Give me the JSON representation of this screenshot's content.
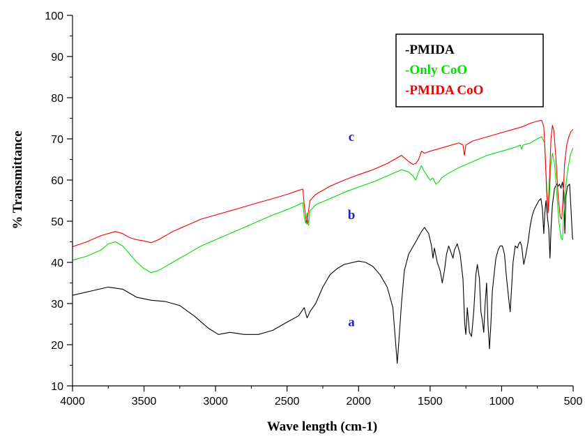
{
  "chart_data": {
    "type": "line",
    "xlabel": "Wave length (cm-1)",
    "ylabel": "% Transmittance",
    "xlim": [
      4000,
      500
    ],
    "ylim": [
      10,
      100
    ],
    "x_reversed": true,
    "x_ticks": [
      4000,
      3500,
      3000,
      2500,
      2000,
      1500,
      1000,
      500
    ],
    "y_ticks": [
      10,
      20,
      30,
      40,
      50,
      60,
      70,
      80,
      90,
      100
    ],
    "legend_position": "top-right",
    "legend_box": true,
    "curve_labels": [
      {
        "text": "a",
        "x": 2050,
        "y": 24.5
      },
      {
        "text": "b",
        "x": 2050,
        "y": 50.5
      },
      {
        "text": "c",
        "x": 2050,
        "y": 69.5
      }
    ],
    "series": [
      {
        "name": "-PMIDA",
        "color": "#000000",
        "points": [
          [
            4000,
            32.0
          ],
          [
            3850,
            33.2
          ],
          [
            3750,
            34.0
          ],
          [
            3650,
            33.5
          ],
          [
            3550,
            31.5
          ],
          [
            3450,
            30.8
          ],
          [
            3350,
            30.5
          ],
          [
            3250,
            29.5
          ],
          [
            3150,
            27.0
          ],
          [
            3050,
            24.0
          ],
          [
            2980,
            22.5
          ],
          [
            2900,
            23.0
          ],
          [
            2800,
            22.5
          ],
          [
            2700,
            22.5
          ],
          [
            2600,
            23.5
          ],
          [
            2500,
            25.5
          ],
          [
            2420,
            27.0
          ],
          [
            2380,
            29.0
          ],
          [
            2360,
            26.5
          ],
          [
            2340,
            28.0
          ],
          [
            2300,
            30.0
          ],
          [
            2250,
            34.0
          ],
          [
            2200,
            37.0
          ],
          [
            2150,
            38.5
          ],
          [
            2100,
            39.5
          ],
          [
            2000,
            40.3
          ],
          [
            1950,
            40.0
          ],
          [
            1900,
            39.0
          ],
          [
            1850,
            37.0
          ],
          [
            1800,
            34.0
          ],
          [
            1760,
            29.0
          ],
          [
            1740,
            20.0
          ],
          [
            1730,
            15.5
          ],
          [
            1720,
            20.0
          ],
          [
            1700,
            30.0
          ],
          [
            1680,
            38.0
          ],
          [
            1650,
            42.0
          ],
          [
            1600,
            45.0
          ],
          [
            1560,
            47.5
          ],
          [
            1540,
            48.5
          ],
          [
            1510,
            47.0
          ],
          [
            1490,
            44.0
          ],
          [
            1480,
            41.0
          ],
          [
            1470,
            43.5
          ],
          [
            1450,
            40.0
          ],
          [
            1430,
            38.0
          ],
          [
            1415,
            35.0
          ],
          [
            1400,
            38.0
          ],
          [
            1385,
            42.0
          ],
          [
            1370,
            44.0
          ],
          [
            1360,
            43.0
          ],
          [
            1340,
            41.0
          ],
          [
            1330,
            43.0
          ],
          [
            1310,
            44.5
          ],
          [
            1290,
            42.0
          ],
          [
            1270,
            36.0
          ],
          [
            1258,
            25.0
          ],
          [
            1250,
            22.5
          ],
          [
            1240,
            29.0
          ],
          [
            1225,
            23.0
          ],
          [
            1210,
            22.0
          ],
          [
            1195,
            28.0
          ],
          [
            1180,
            37.0
          ],
          [
            1170,
            39.5
          ],
          [
            1155,
            36.0
          ],
          [
            1145,
            28.0
          ],
          [
            1135,
            26.0
          ],
          [
            1125,
            23.0
          ],
          [
            1115,
            30.0
          ],
          [
            1105,
            35.0
          ],
          [
            1095,
            25.0
          ],
          [
            1085,
            19.0
          ],
          [
            1075,
            25.0
          ],
          [
            1065,
            33.0
          ],
          [
            1050,
            38.0
          ],
          [
            1040,
            41.0
          ],
          [
            1025,
            43.0
          ],
          [
            1010,
            44.0
          ],
          [
            995,
            44.0
          ],
          [
            980,
            42.0
          ],
          [
            965,
            36.0
          ],
          [
            950,
            31.0
          ],
          [
            940,
            28.0
          ],
          [
            930,
            34.0
          ],
          [
            920,
            40.0
          ],
          [
            905,
            44.0
          ],
          [
            890,
            43.5
          ],
          [
            880,
            44.5
          ],
          [
            870,
            45.0
          ],
          [
            860,
            44.0
          ],
          [
            845,
            39.5
          ],
          [
            830,
            42.0
          ],
          [
            815,
            45.0
          ],
          [
            800,
            49.0
          ],
          [
            785,
            51.5
          ],
          [
            770,
            53.0
          ],
          [
            755,
            54.0
          ],
          [
            740,
            55.0
          ],
          [
            725,
            55.5
          ],
          [
            715,
            53.0
          ],
          [
            705,
            47.0
          ],
          [
            698,
            52.0
          ],
          [
            690,
            55.0
          ],
          [
            680,
            51.0
          ],
          [
            670,
            48.0
          ],
          [
            662,
            41.0
          ],
          [
            655,
            48.0
          ],
          [
            645,
            54.0
          ],
          [
            630,
            58.0
          ],
          [
            615,
            59.0
          ],
          [
            605,
            58.5
          ],
          [
            595,
            59.0
          ],
          [
            585,
            58.0
          ],
          [
            575,
            59.5
          ],
          [
            565,
            57.0
          ],
          [
            558,
            47.0
          ],
          [
            550,
            56.0
          ],
          [
            540,
            58.5
          ],
          [
            525,
            59.0
          ],
          [
            515,
            53.0
          ],
          [
            505,
            46.0
          ],
          [
            500,
            45.5
          ]
        ]
      },
      {
        "name": "-Only CoO",
        "color": "#00dd00",
        "points": [
          [
            4000,
            40.5
          ],
          [
            3900,
            41.5
          ],
          [
            3800,
            43.0
          ],
          [
            3750,
            44.5
          ],
          [
            3700,
            45.0
          ],
          [
            3650,
            44.0
          ],
          [
            3600,
            42.0
          ],
          [
            3550,
            40.0
          ],
          [
            3500,
            38.5
          ],
          [
            3450,
            37.5
          ],
          [
            3400,
            38.0
          ],
          [
            3300,
            40.0
          ],
          [
            3200,
            42.0
          ],
          [
            3100,
            44.0
          ],
          [
            3000,
            45.5
          ],
          [
            2900,
            47.0
          ],
          [
            2800,
            48.5
          ],
          [
            2700,
            50.0
          ],
          [
            2600,
            51.5
          ],
          [
            2500,
            52.8
          ],
          [
            2420,
            54.0
          ],
          [
            2390,
            54.5
          ],
          [
            2380,
            51.0
          ],
          [
            2370,
            49.5
          ],
          [
            2360,
            52.0
          ],
          [
            2350,
            49.0
          ],
          [
            2340,
            52.5
          ],
          [
            2300,
            54.0
          ],
          [
            2200,
            55.5
          ],
          [
            2100,
            57.0
          ],
          [
            2000,
            58.3
          ],
          [
            1900,
            59.5
          ],
          [
            1800,
            61.0
          ],
          [
            1700,
            62.5
          ],
          [
            1650,
            62.0
          ],
          [
            1620,
            61.0
          ],
          [
            1600,
            60.0
          ],
          [
            1580,
            62.0
          ],
          [
            1560,
            63.5
          ],
          [
            1540,
            62.0
          ],
          [
            1520,
            61.0
          ],
          [
            1500,
            60.0
          ],
          [
            1480,
            60.5
          ],
          [
            1460,
            59.0
          ],
          [
            1440,
            59.5
          ],
          [
            1420,
            60.5
          ],
          [
            1380,
            61.5
          ],
          [
            1300,
            63.0
          ],
          [
            1200,
            64.5
          ],
          [
            1100,
            66.0
          ],
          [
            1000,
            67.0
          ],
          [
            950,
            67.5
          ],
          [
            900,
            68.0
          ],
          [
            870,
            68.5
          ],
          [
            860,
            67.5
          ],
          [
            850,
            68.5
          ],
          [
            800,
            69.0
          ],
          [
            750,
            70.0
          ],
          [
            720,
            70.5
          ],
          [
            700,
            69.0
          ],
          [
            690,
            62.0
          ],
          [
            680,
            55.0
          ],
          [
            672,
            52.5
          ],
          [
            665,
            57.0
          ],
          [
            655,
            64.0
          ],
          [
            645,
            66.5
          ],
          [
            630,
            64.0
          ],
          [
            615,
            57.0
          ],
          [
            600,
            50.0
          ],
          [
            585,
            46.0
          ],
          [
            575,
            45.5
          ],
          [
            565,
            52.0
          ],
          [
            550,
            59.0
          ],
          [
            535,
            63.0
          ],
          [
            520,
            66.0
          ],
          [
            505,
            67.5
          ],
          [
            500,
            67.8
          ]
        ]
      },
      {
        "name": "-PMIDA CoO",
        "color": "#ee0000",
        "points": [
          [
            4000,
            43.8
          ],
          [
            3900,
            45.0
          ],
          [
            3800,
            46.5
          ],
          [
            3700,
            47.5
          ],
          [
            3650,
            47.0
          ],
          [
            3600,
            46.0
          ],
          [
            3550,
            45.5
          ],
          [
            3500,
            45.2
          ],
          [
            3450,
            44.8
          ],
          [
            3400,
            45.5
          ],
          [
            3300,
            47.5
          ],
          [
            3200,
            49.0
          ],
          [
            3100,
            50.5
          ],
          [
            3000,
            51.5
          ],
          [
            2900,
            52.5
          ],
          [
            2800,
            53.5
          ],
          [
            2700,
            54.5
          ],
          [
            2600,
            55.5
          ],
          [
            2500,
            56.5
          ],
          [
            2420,
            57.5
          ],
          [
            2390,
            57.8
          ],
          [
            2380,
            54.0
          ],
          [
            2370,
            51.0
          ],
          [
            2360,
            49.3
          ],
          [
            2352,
            52.0
          ],
          [
            2340,
            55.0
          ],
          [
            2300,
            56.5
          ],
          [
            2200,
            58.5
          ],
          [
            2100,
            60.0
          ],
          [
            2000,
            61.3
          ],
          [
            1900,
            62.5
          ],
          [
            1800,
            64.0
          ],
          [
            1750,
            65.0
          ],
          [
            1700,
            66.0
          ],
          [
            1650,
            64.5
          ],
          [
            1620,
            63.8
          ],
          [
            1600,
            64.0
          ],
          [
            1580,
            65.0
          ],
          [
            1560,
            67.0
          ],
          [
            1540,
            66.5
          ],
          [
            1500,
            67.0
          ],
          [
            1450,
            67.5
          ],
          [
            1400,
            68.0
          ],
          [
            1300,
            69.0
          ],
          [
            1270,
            68.5
          ],
          [
            1260,
            66.0
          ],
          [
            1250,
            68.5
          ],
          [
            1200,
            69.5
          ],
          [
            1100,
            70.5
          ],
          [
            1000,
            71.5
          ],
          [
            900,
            72.5
          ],
          [
            850,
            73.0
          ],
          [
            800,
            73.8
          ],
          [
            750,
            74.3
          ],
          [
            720,
            74.5
          ],
          [
            705,
            73.0
          ],
          [
            695,
            66.0
          ],
          [
            685,
            57.0
          ],
          [
            675,
            52.0
          ],
          [
            668,
            58.0
          ],
          [
            655,
            70.0
          ],
          [
            645,
            73.3
          ],
          [
            635,
            72.0
          ],
          [
            620,
            65.0
          ],
          [
            605,
            56.0
          ],
          [
            590,
            51.0
          ],
          [
            580,
            50.5
          ],
          [
            570,
            56.0
          ],
          [
            560,
            64.0
          ],
          [
            545,
            68.5
          ],
          [
            530,
            70.5
          ],
          [
            515,
            71.8
          ],
          [
            500,
            72.3
          ]
        ]
      }
    ]
  }
}
